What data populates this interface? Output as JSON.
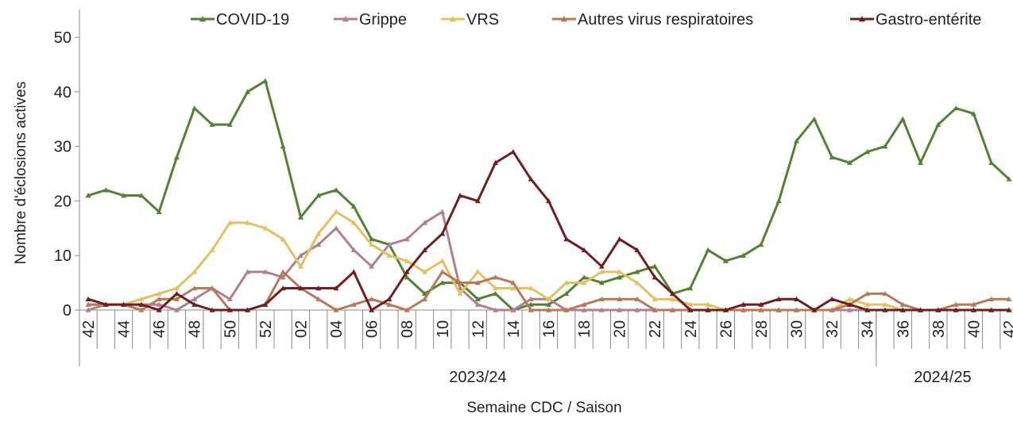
{
  "chart_data": {
    "type": "line",
    "y_label": "Nombre d'éclosions actives",
    "x_label": "Semaine CDC / Saison",
    "categories": [
      "42",
      null,
      "44",
      null,
      "46",
      null,
      "48",
      null,
      "50",
      null,
      "52",
      null,
      "02",
      null,
      "04",
      null,
      "06",
      null,
      "08",
      null,
      "10",
      null,
      "12",
      null,
      "14",
      null,
      "16",
      null,
      "18",
      null,
      "20",
      null,
      "22",
      null,
      "24",
      null,
      "26",
      null,
      "28",
      null,
      "30",
      null,
      "32",
      null,
      "34",
      null,
      "36",
      null,
      "38",
      null,
      "40",
      null,
      "42"
    ],
    "groups": [
      {
        "name": "2023/24",
        "span": 45
      },
      {
        "name": "2024/25",
        "span": 8
      }
    ],
    "ylim": [
      0,
      50
    ],
    "yticks": [
      0,
      10,
      20,
      30,
      40,
      50
    ],
    "series": [
      {
        "name": "COVID-19",
        "color": "#548235",
        "values": [
          21,
          22,
          21,
          21,
          18,
          28,
          37,
          34,
          34,
          40,
          42,
          30,
          17,
          21,
          22,
          19,
          13,
          12,
          6,
          3,
          5,
          5,
          2,
          3,
          0,
          1,
          1,
          3,
          6,
          5,
          6,
          7,
          8,
          3,
          4,
          11,
          9,
          10,
          12,
          20,
          31,
          35,
          28,
          27,
          29,
          30,
          35,
          27,
          34,
          37,
          36,
          27,
          24
        ]
      },
      {
        "name": "Grippe",
        "color": "#b08090",
        "values": [
          0,
          1,
          1,
          1,
          1,
          0,
          2,
          4,
          2,
          7,
          7,
          6,
          10,
          12,
          15,
          11,
          8,
          12,
          13,
          16,
          18,
          4,
          1,
          0,
          0,
          2,
          2,
          0,
          0,
          0,
          0,
          0,
          0,
          0,
          0,
          0,
          0,
          0,
          0,
          0,
          0,
          0,
          0,
          0,
          0,
          0,
          0,
          0,
          0,
          0,
          0,
          0,
          0
        ]
      },
      {
        "name": "VRS",
        "color": "#e3c163",
        "values": [
          1,
          1,
          1,
          2,
          3,
          4,
          7,
          11,
          16,
          16,
          15,
          13,
          8,
          14,
          18,
          16,
          12,
          10,
          9,
          7,
          9,
          3,
          7,
          4,
          4,
          4,
          2,
          5,
          5,
          7,
          7,
          5,
          2,
          2,
          1,
          1,
          0,
          0,
          0,
          0,
          0,
          0,
          0,
          2,
          1,
          1,
          0,
          0,
          0,
          0,
          0,
          0,
          0
        ]
      },
      {
        "name": "Autres virus respiratoires",
        "color": "#b8785a",
        "values": [
          1,
          1,
          1,
          0,
          2,
          2,
          4,
          4,
          0,
          0,
          1,
          7,
          4,
          2,
          0,
          1,
          2,
          1,
          0,
          2,
          7,
          5,
          5,
          6,
          5,
          0,
          0,
          0,
          1,
          2,
          2,
          2,
          0,
          0,
          0,
          0,
          0,
          0,
          0,
          0,
          0,
          0,
          0,
          1,
          3,
          3,
          1,
          0,
          0,
          1,
          1,
          2,
          2
        ]
      },
      {
        "name": "Gastro-entérite",
        "color": "#6e1f1f",
        "values": [
          2,
          1,
          1,
          1,
          0,
          3,
          1,
          0,
          0,
          0,
          1,
          4,
          4,
          4,
          4,
          7,
          0,
          2,
          7,
          11,
          14,
          21,
          20,
          27,
          29,
          24,
          20,
          13,
          11,
          8,
          13,
          11,
          6,
          3,
          0,
          0,
          0,
          1,
          1,
          2,
          2,
          0,
          2,
          1,
          0,
          0,
          0,
          0,
          0,
          0,
          0,
          0,
          0
        ]
      }
    ]
  }
}
